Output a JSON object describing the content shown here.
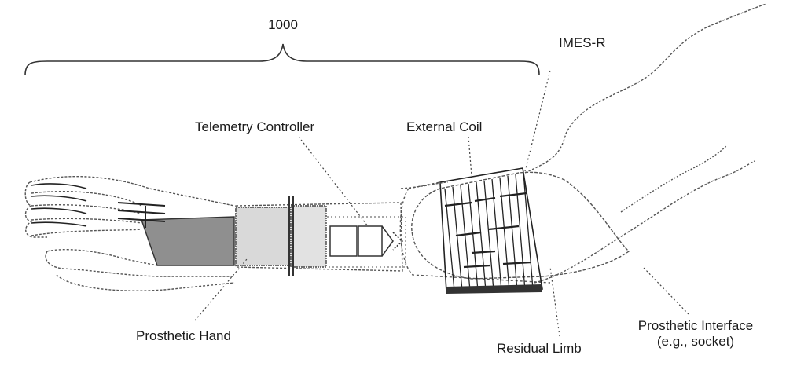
{
  "figure": {
    "reference_number": "1000",
    "labels": {
      "imes_r": "IMES-R",
      "telemetry_controller": "Telemetry Controller",
      "external_coil": "External Coil",
      "prosthetic_hand": "Prosthetic Hand",
      "residual_limb": "Residual Limb",
      "prosthetic_interface_line1": "Prosthetic Interface",
      "prosthetic_interface_line2": "(e.g., socket)"
    }
  }
}
